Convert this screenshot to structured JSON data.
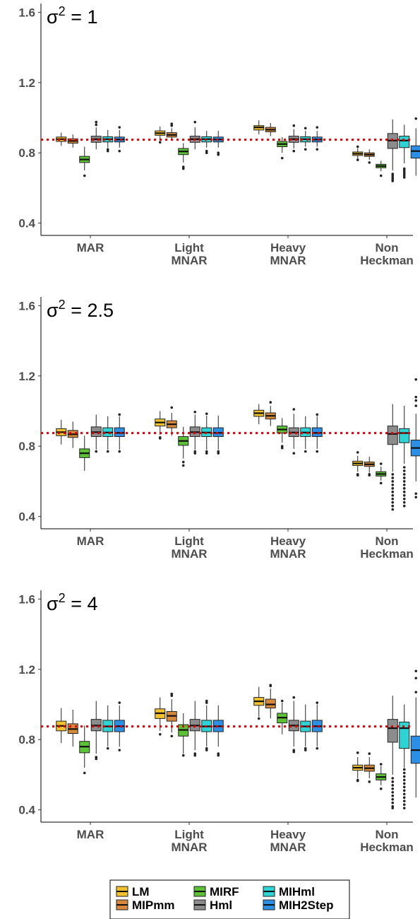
{
  "legend": {
    "items": [
      {
        "name": "LM",
        "color": "#F2C12E"
      },
      {
        "name": "MIPmm",
        "color": "#D6893A"
      },
      {
        "name": "MIRF",
        "color": "#5BC236"
      },
      {
        "name": "Hml",
        "color": "#8C8C8C"
      },
      {
        "name": "MIHml",
        "color": "#2ED4D4"
      },
      {
        "name": "MIH2Step",
        "color": "#2C8FE6"
      }
    ]
  },
  "chart_data": [
    {
      "type": "boxplot",
      "title_base": "σ",
      "title_exp": "2",
      "title_rest": " = 1",
      "categories": [
        "MAR",
        "Light\nMNAR",
        "Heavy\nMNAR",
        "Non\nHeckman"
      ],
      "yticks": [
        0.4,
        0.8,
        1.2,
        1.6
      ],
      "ylim": [
        0.33,
        1.65
      ],
      "reference_line": 0.875,
      "series_names": [
        "LM",
        "MIPmm",
        "MIRF",
        "Hml",
        "MIHml",
        "MIH2Step"
      ],
      "boxes": [
        [
          {
            "q1": 0.865,
            "median": 0.878,
            "q3": 0.89,
            "wlo": 0.84,
            "whi": 0.915,
            "outliers": []
          },
          {
            "q1": 0.855,
            "median": 0.868,
            "q3": 0.88,
            "wlo": 0.83,
            "whi": 0.905,
            "outliers": []
          },
          {
            "q1": 0.745,
            "median": 0.762,
            "q3": 0.78,
            "wlo": 0.7,
            "whi": 0.835,
            "outliers": [
              0.67
            ]
          },
          {
            "q1": 0.86,
            "median": 0.878,
            "q3": 0.895,
            "wlo": 0.82,
            "whi": 0.945,
            "outliers": [
              0.96,
              0.975
            ]
          },
          {
            "q1": 0.862,
            "median": 0.878,
            "q3": 0.892,
            "wlo": 0.83,
            "whi": 0.93,
            "outliers": [
              0.81,
              0.82
            ]
          },
          {
            "q1": 0.862,
            "median": 0.876,
            "q3": 0.89,
            "wlo": 0.83,
            "whi": 0.93,
            "outliers": [
              0.81,
              0.945
            ]
          }
        ],
        [
          {
            "q1": 0.9,
            "median": 0.912,
            "q3": 0.925,
            "wlo": 0.875,
            "whi": 0.95,
            "outliers": [
              0.86
            ]
          },
          {
            "q1": 0.89,
            "median": 0.902,
            "q3": 0.915,
            "wlo": 0.87,
            "whi": 0.94,
            "outliers": [
              0.955,
              0.965
            ]
          },
          {
            "q1": 0.79,
            "median": 0.808,
            "q3": 0.825,
            "wlo": 0.745,
            "whi": 0.855,
            "outliers": [
              0.71,
              0.72
            ]
          },
          {
            "q1": 0.86,
            "median": 0.878,
            "q3": 0.895,
            "wlo": 0.82,
            "whi": 0.945,
            "outliers": [
              0.975
            ]
          },
          {
            "q1": 0.862,
            "median": 0.878,
            "q3": 0.892,
            "wlo": 0.83,
            "whi": 0.925,
            "outliers": [
              0.8,
              0.81
            ]
          },
          {
            "q1": 0.862,
            "median": 0.876,
            "q3": 0.89,
            "wlo": 0.83,
            "whi": 0.925,
            "outliers": [
              0.79,
              0.8
            ]
          }
        ],
        [
          {
            "q1": 0.93,
            "median": 0.945,
            "q3": 0.955,
            "wlo": 0.905,
            "whi": 0.985,
            "outliers": []
          },
          {
            "q1": 0.92,
            "median": 0.932,
            "q3": 0.945,
            "wlo": 0.895,
            "whi": 0.97,
            "outliers": []
          },
          {
            "q1": 0.835,
            "median": 0.85,
            "q3": 0.865,
            "wlo": 0.8,
            "whi": 0.89,
            "outliers": [
              0.77
            ]
          },
          {
            "q1": 0.86,
            "median": 0.878,
            "q3": 0.895,
            "wlo": 0.825,
            "whi": 0.935,
            "outliers": [
              0.81,
              0.955
            ]
          },
          {
            "q1": 0.862,
            "median": 0.878,
            "q3": 0.892,
            "wlo": 0.835,
            "whi": 0.925,
            "outliers": [
              0.82,
              0.94
            ]
          },
          {
            "q1": 0.862,
            "median": 0.876,
            "q3": 0.89,
            "wlo": 0.835,
            "whi": 0.925,
            "outliers": [
              0.82,
              0.945
            ]
          }
        ],
        [
          {
            "q1": 0.785,
            "median": 0.795,
            "q3": 0.805,
            "wlo": 0.765,
            "whi": 0.825,
            "outliers": [
              0.76,
              0.835
            ]
          },
          {
            "q1": 0.78,
            "median": 0.79,
            "q3": 0.8,
            "wlo": 0.76,
            "whi": 0.82,
            "outliers": [
              0.745
            ]
          },
          {
            "q1": 0.715,
            "median": 0.725,
            "q3": 0.735,
            "wlo": 0.695,
            "whi": 0.755,
            "outliers": [
              0.67
            ]
          },
          {
            "q1": 0.825,
            "median": 0.87,
            "q3": 0.91,
            "wlo": 0.7,
            "whi": 0.99,
            "outliers": [
              0.64,
              0.65,
              0.66,
              0.67,
              0.68
            ]
          },
          {
            "q1": 0.83,
            "median": 0.87,
            "q3": 0.895,
            "wlo": 0.74,
            "whi": 0.96,
            "outliers": [
              0.66,
              0.67,
              0.68,
              0.69,
              0.7,
              0.71
            ]
          },
          {
            "q1": 0.77,
            "median": 0.81,
            "q3": 0.84,
            "wlo": 0.67,
            "whi": 0.94,
            "outliers": [
              0.995
            ]
          }
        ]
      ]
    },
    {
      "type": "boxplot",
      "title_base": "σ",
      "title_exp": "2",
      "title_rest": " = 2.5",
      "categories": [
        "MAR",
        "Light\nMNAR",
        "Heavy\nMNAR",
        "Non\nHeckman"
      ],
      "yticks": [
        0.4,
        0.8,
        1.2,
        1.6
      ],
      "ylim": [
        0.33,
        1.65
      ],
      "reference_line": 0.875,
      "series_names": [
        "LM",
        "MIPmm",
        "MIRF",
        "Hml",
        "MIHml",
        "MIH2Step"
      ],
      "boxes": [
        [
          {
            "q1": 0.86,
            "median": 0.88,
            "q3": 0.9,
            "wlo": 0.81,
            "whi": 0.95,
            "outliers": []
          },
          {
            "q1": 0.85,
            "median": 0.868,
            "q3": 0.89,
            "wlo": 0.79,
            "whi": 0.94,
            "outliers": []
          },
          {
            "q1": 0.735,
            "median": 0.76,
            "q3": 0.785,
            "wlo": 0.66,
            "whi": 0.86,
            "outliers": []
          },
          {
            "q1": 0.855,
            "median": 0.88,
            "q3": 0.91,
            "wlo": 0.78,
            "whi": 0.98,
            "outliers": [
              0.77
            ]
          },
          {
            "q1": 0.855,
            "median": 0.878,
            "q3": 0.905,
            "wlo": 0.78,
            "whi": 0.97,
            "outliers": [
              0.77
            ]
          },
          {
            "q1": 0.855,
            "median": 0.876,
            "q3": 0.905,
            "wlo": 0.78,
            "whi": 0.97,
            "outliers": [
              0.77,
              0.98
            ]
          }
        ],
        [
          {
            "q1": 0.915,
            "median": 0.935,
            "q3": 0.955,
            "wlo": 0.865,
            "whi": 1.0,
            "outliers": [
              0.845,
              0.85
            ]
          },
          {
            "q1": 0.905,
            "median": 0.925,
            "q3": 0.945,
            "wlo": 0.86,
            "whi": 0.99,
            "outliers": [
              1.02
            ]
          },
          {
            "q1": 0.805,
            "median": 0.83,
            "q3": 0.855,
            "wlo": 0.73,
            "whi": 0.91,
            "outliers": [
              0.69,
              0.71
            ]
          },
          {
            "q1": 0.855,
            "median": 0.88,
            "q3": 0.91,
            "wlo": 0.78,
            "whi": 0.98,
            "outliers": [
              0.76,
              0.77,
              0.995
            ]
          },
          {
            "q1": 0.855,
            "median": 0.878,
            "q3": 0.905,
            "wlo": 0.78,
            "whi": 0.975,
            "outliers": [
              0.76,
              0.77,
              0.985
            ]
          },
          {
            "q1": 0.855,
            "median": 0.876,
            "q3": 0.905,
            "wlo": 0.78,
            "whi": 0.975,
            "outliers": [
              0.76,
              0.77
            ]
          }
        ],
        [
          {
            "q1": 0.97,
            "median": 0.988,
            "q3": 1.005,
            "wlo": 0.925,
            "whi": 1.04,
            "outliers": []
          },
          {
            "q1": 0.955,
            "median": 0.973,
            "q3": 0.99,
            "wlo": 0.915,
            "whi": 1.03,
            "outliers": [
              1.05
            ]
          },
          {
            "q1": 0.875,
            "median": 0.895,
            "q3": 0.915,
            "wlo": 0.82,
            "whi": 0.96,
            "outliers": [
              0.79,
              0.8
            ]
          },
          {
            "q1": 0.855,
            "median": 0.878,
            "q3": 0.905,
            "wlo": 0.785,
            "whi": 0.985,
            "outliers": [
              0.76,
              1.01
            ]
          },
          {
            "q1": 0.855,
            "median": 0.878,
            "q3": 0.905,
            "wlo": 0.785,
            "whi": 0.97,
            "outliers": [
              0.77
            ]
          },
          {
            "q1": 0.855,
            "median": 0.876,
            "q3": 0.905,
            "wlo": 0.785,
            "whi": 0.97,
            "outliers": [
              0.77,
              0.98
            ]
          }
        ],
        [
          {
            "q1": 0.69,
            "median": 0.702,
            "q3": 0.715,
            "wlo": 0.655,
            "whi": 0.745,
            "outliers": [
              0.635,
              0.64,
              0.765
            ]
          },
          {
            "q1": 0.685,
            "median": 0.697,
            "q3": 0.71,
            "wlo": 0.65,
            "whi": 0.74,
            "outliers": [
              0.635,
              0.64
            ]
          },
          {
            "q1": 0.63,
            "median": 0.642,
            "q3": 0.655,
            "wlo": 0.605,
            "whi": 0.685,
            "outliers": [
              0.59,
              0.7
            ]
          },
          {
            "q1": 0.81,
            "median": 0.87,
            "q3": 0.915,
            "wlo": 0.655,
            "whi": 1.04,
            "outliers": [
              0.44,
              0.46,
              0.48,
              0.5,
              0.52,
              0.54,
              0.56,
              0.58,
              0.6,
              0.62,
              0.64
            ]
          },
          {
            "q1": 0.82,
            "median": 0.875,
            "q3": 0.9,
            "wlo": 0.7,
            "whi": 1.03,
            "outliers": [
              0.46,
              0.48,
              0.5,
              0.52,
              0.54,
              0.56,
              0.58,
              0.6,
              0.62,
              0.64,
              0.66,
              0.68
            ]
          },
          {
            "q1": 0.745,
            "median": 0.79,
            "q3": 0.835,
            "wlo": 0.6,
            "whi": 0.985,
            "outliers": [
              0.51,
              0.53,
              1.03,
              1.06,
              1.08,
              1.18
            ]
          }
        ]
      ]
    },
    {
      "type": "boxplot",
      "title_base": "σ",
      "title_exp": "2",
      "title_rest": " = 4",
      "categories": [
        "MAR",
        "Light\nMNAR",
        "Heavy\nMNAR",
        "Non\nHeckman"
      ],
      "yticks": [
        0.4,
        0.8,
        1.2,
        1.6
      ],
      "ylim": [
        0.33,
        1.65
      ],
      "reference_line": 0.875,
      "series_names": [
        "LM",
        "MIPmm",
        "MIRF",
        "Hml",
        "MIHml",
        "MIH2Step"
      ],
      "boxes": [
        [
          {
            "q1": 0.85,
            "median": 0.878,
            "q3": 0.905,
            "wlo": 0.78,
            "whi": 0.98,
            "outliers": []
          },
          {
            "q1": 0.835,
            "median": 0.86,
            "q3": 0.89,
            "wlo": 0.76,
            "whi": 0.97,
            "outliers": []
          },
          {
            "q1": 0.725,
            "median": 0.76,
            "q3": 0.79,
            "wlo": 0.64,
            "whi": 0.88,
            "outliers": [
              0.61
            ]
          },
          {
            "q1": 0.85,
            "median": 0.88,
            "q3": 0.915,
            "wlo": 0.72,
            "whi": 1.02,
            "outliers": [
              0.69,
              0.7
            ]
          },
          {
            "q1": 0.845,
            "median": 0.875,
            "q3": 0.91,
            "wlo": 0.76,
            "whi": 0.995,
            "outliers": [
              0.75
            ]
          },
          {
            "q1": 0.845,
            "median": 0.876,
            "q3": 0.91,
            "wlo": 0.76,
            "whi": 0.995,
            "outliers": [
              0.74,
              1.01
            ]
          }
        ],
        [
          {
            "q1": 0.92,
            "median": 0.95,
            "q3": 0.975,
            "wlo": 0.85,
            "whi": 1.04,
            "outliers": [
              0.83
            ]
          },
          {
            "q1": 0.905,
            "median": 0.935,
            "q3": 0.96,
            "wlo": 0.84,
            "whi": 1.03,
            "outliers": [
              0.82,
              1.05,
              1.06
            ]
          },
          {
            "q1": 0.82,
            "median": 0.855,
            "q3": 0.885,
            "wlo": 0.72,
            "whi": 0.95,
            "outliers": [
              0.71
            ]
          },
          {
            "q1": 0.85,
            "median": 0.88,
            "q3": 0.915,
            "wlo": 0.74,
            "whi": 1.02,
            "outliers": [
              0.71,
              0.72
            ]
          },
          {
            "q1": 0.845,
            "median": 0.875,
            "q3": 0.91,
            "wlo": 0.76,
            "whi": 0.995,
            "outliers": [
              0.74,
              0.75,
              1.01,
              1.02
            ]
          },
          {
            "q1": 0.845,
            "median": 0.876,
            "q3": 0.91,
            "wlo": 0.76,
            "whi": 0.995,
            "outliers": [
              0.71,
              0.72
            ]
          }
        ],
        [
          {
            "q1": 0.995,
            "median": 1.018,
            "q3": 1.04,
            "wlo": 0.93,
            "whi": 1.1,
            "outliers": [
              0.92
            ]
          },
          {
            "q1": 0.98,
            "median": 1.0,
            "q3": 1.03,
            "wlo": 0.92,
            "whi": 1.09,
            "outliers": [
              1.105,
              1.11
            ]
          },
          {
            "q1": 0.895,
            "median": 0.925,
            "q3": 0.95,
            "wlo": 0.83,
            "whi": 1.01,
            "outliers": [
              1.02
            ]
          },
          {
            "q1": 0.85,
            "median": 0.88,
            "q3": 0.91,
            "wlo": 0.76,
            "whi": 1.02,
            "outliers": [
              0.73,
              0.74,
              1.04
            ]
          },
          {
            "q1": 0.845,
            "median": 0.875,
            "q3": 0.905,
            "wlo": 0.76,
            "whi": 1.0,
            "outliers": [
              0.74,
              0.75
            ]
          },
          {
            "q1": 0.845,
            "median": 0.876,
            "q3": 0.91,
            "wlo": 0.76,
            "whi": 1.0,
            "outliers": [
              1.01,
              0.75
            ]
          }
        ],
        [
          {
            "q1": 0.625,
            "median": 0.64,
            "q3": 0.655,
            "wlo": 0.58,
            "whi": 0.7,
            "outliers": [
              0.565,
              0.57,
              0.725
            ]
          },
          {
            "q1": 0.62,
            "median": 0.637,
            "q3": 0.655,
            "wlo": 0.58,
            "whi": 0.7,
            "outliers": [
              0.56,
              0.72
            ]
          },
          {
            "q1": 0.57,
            "median": 0.587,
            "q3": 0.605,
            "wlo": 0.54,
            "whi": 0.65,
            "outliers": [
              0.52,
              0.66
            ]
          },
          {
            "q1": 0.785,
            "median": 0.865,
            "q3": 0.915,
            "wlo": 0.6,
            "whi": 1.05,
            "outliers": [
              0.41,
              0.42,
              0.44,
              0.46,
              0.48,
              0.5,
              0.52,
              0.54,
              0.56,
              0.58
            ]
          },
          {
            "q1": 0.75,
            "median": 0.865,
            "q3": 0.9,
            "wlo": 0.64,
            "whi": 1.0,
            "outliers": [
              0.41,
              0.43,
              0.45,
              0.47,
              0.49,
              0.51,
              0.53,
              0.55,
              0.57,
              0.59,
              0.61,
              0.63
            ]
          },
          {
            "q1": 0.665,
            "median": 0.74,
            "q3": 0.82,
            "wlo": 0.47,
            "whi": 1.04,
            "outliers": [
              1.07,
              1.15,
              1.19
            ]
          }
        ]
      ]
    }
  ]
}
